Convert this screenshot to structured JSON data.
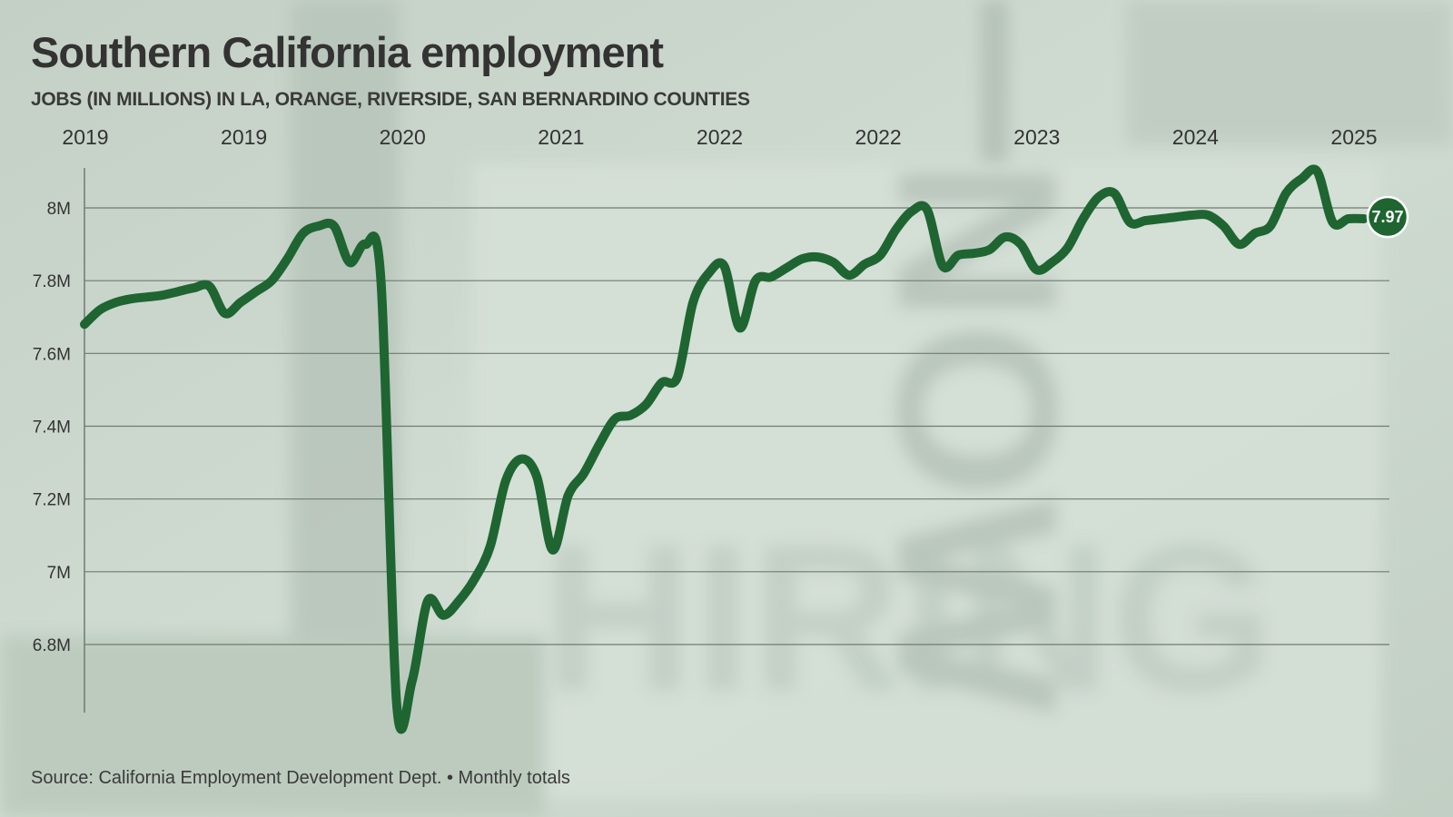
{
  "colors": {
    "background": "#c9d6cb",
    "line": "#1e6531",
    "grid": "#6f7b72",
    "text": "#333333",
    "endpoint_fill": "#1e6531",
    "endpoint_text": "#ffffff"
  },
  "header": {
    "title": "Southern California employment",
    "subtitle": "JOBS (IN MILLIONS) IN LA, ORANGE, RIVERSIDE, SAN BERNARDINO COUNTIES"
  },
  "footer": {
    "source": "Source: California Employment Development Dept. • Monthly totals"
  },
  "chart_data": {
    "type": "line",
    "title": "Southern California employment",
    "subtitle": "JOBS (IN MILLIONS) IN LA, ORANGE, RIVERSIDE, SAN BERNARDINO COUNTIES",
    "xlabel": "",
    "ylabel": "",
    "x_tick_labels": [
      "2019",
      "2019",
      "2020",
      "2021",
      "2022",
      "2022",
      "2023",
      "2024",
      "2025"
    ],
    "x_tick_position": "top",
    "y_ticks": [
      6.8,
      7.0,
      7.2,
      7.4,
      7.6,
      7.8,
      8.0
    ],
    "y_tick_labels": [
      "6.8M",
      "7M",
      "7.2M",
      "7.4M",
      "7.6M",
      "7.8M",
      "8M"
    ],
    "ylim": [
      6.63,
      8.1
    ],
    "x_range": [
      0,
      82
    ],
    "grid": "horizontal",
    "legend": "none",
    "end_label": "7.97",
    "series": [
      {
        "values": [
          7.68,
          7.72,
          7.74,
          7.75,
          7.755,
          7.76,
          7.77,
          7.78,
          7.785,
          7.71,
          7.74,
          7.77,
          7.8,
          7.86,
          7.93,
          7.95,
          7.95,
          7.85,
          7.9,
          7.8,
          6.64,
          6.7,
          6.92,
          6.88,
          6.92,
          6.98,
          7.07,
          7.25,
          7.31,
          7.26,
          7.06,
          7.21,
          7.27,
          7.35,
          7.42,
          7.43,
          7.46,
          7.52,
          7.535,
          7.74,
          7.82,
          7.84,
          7.67,
          7.8,
          7.81,
          7.835,
          7.86,
          7.865,
          7.85,
          7.815,
          7.845,
          7.87,
          7.94,
          7.99,
          7.995,
          7.84,
          7.87,
          7.875,
          7.885,
          7.92,
          7.9,
          7.83,
          7.85,
          7.89,
          7.97,
          8.03,
          8.04,
          7.96,
          7.965,
          7.97,
          7.975,
          7.98,
          7.98,
          7.95,
          7.9,
          7.93,
          7.95,
          8.04,
          8.08,
          8.1,
          7.96,
          7.97,
          7.97
        ]
      }
    ]
  }
}
